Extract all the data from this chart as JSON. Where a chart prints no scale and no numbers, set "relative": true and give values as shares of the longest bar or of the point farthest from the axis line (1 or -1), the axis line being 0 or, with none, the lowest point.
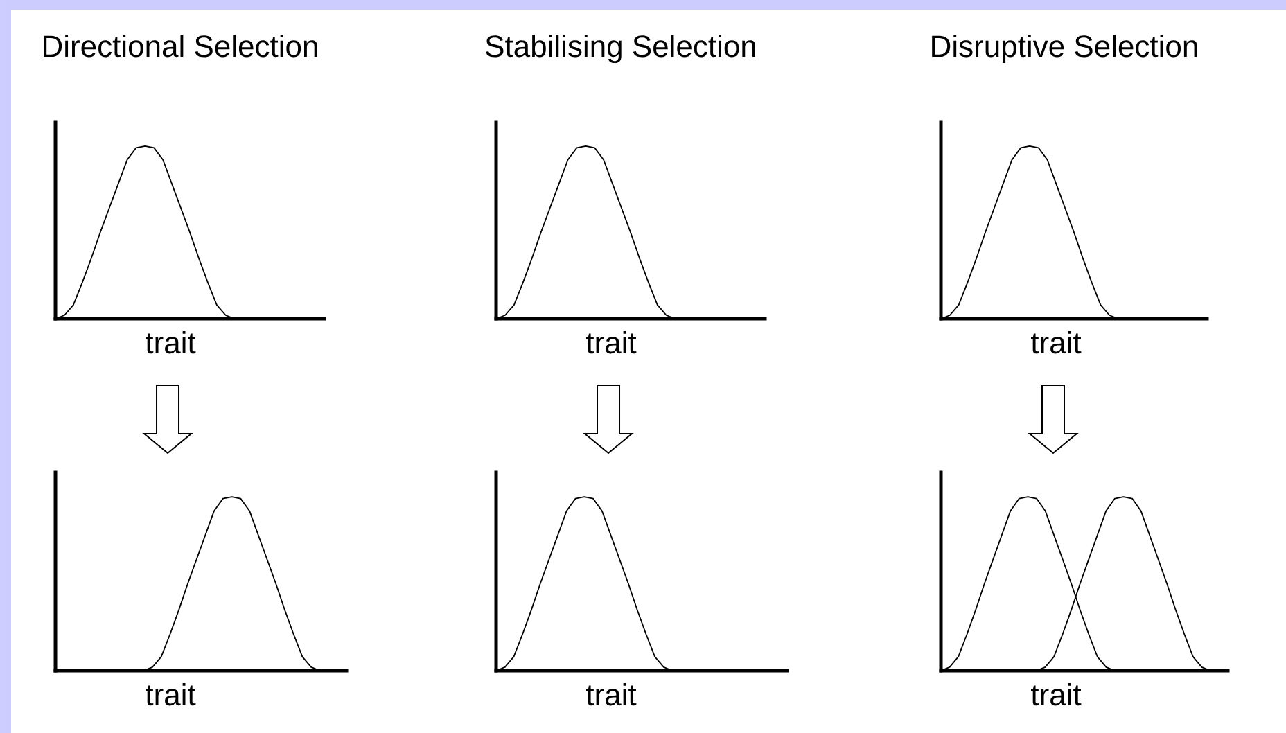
{
  "chart_data": [
    {
      "type": "line",
      "title": "Directional Selection",
      "xlabel": "trait",
      "relative": true,
      "categories": [
        null,
        null,
        null,
        null,
        null,
        null,
        null,
        null,
        null,
        null,
        null,
        null,
        null,
        null,
        null,
        null,
        null,
        null,
        null,
        null,
        null,
        null,
        null,
        null,
        null,
        null,
        null,
        null,
        null,
        null,
        null
      ],
      "series": [
        {
          "color": "#000000",
          "values": [
            0,
            0.02,
            0.08,
            0.21,
            0.35,
            0.5,
            0.64,
            0.78,
            0.92,
            0.99,
            1,
            0.99,
            0.92,
            0.78,
            0.64,
            0.5,
            0.35,
            0.21,
            0.08,
            0.02,
            0,
            null,
            null,
            null,
            null,
            null,
            null,
            null,
            null,
            null,
            null
          ]
        }
      ]
    },
    {
      "type": "line",
      "title": "Stabilising Selection",
      "xlabel": "trait",
      "relative": true,
      "categories": [
        null,
        null,
        null,
        null,
        null,
        null,
        null,
        null,
        null,
        null,
        null,
        null,
        null,
        null,
        null,
        null,
        null,
        null,
        null,
        null,
        null,
        null,
        null,
        null,
        null,
        null,
        null,
        null,
        null,
        null,
        null
      ],
      "series": [
        {
          "color": "#000000",
          "values": [
            0,
            0.02,
            0.08,
            0.21,
            0.35,
            0.5,
            0.64,
            0.78,
            0.92,
            0.99,
            1,
            0.99,
            0.92,
            0.78,
            0.64,
            0.5,
            0.35,
            0.21,
            0.08,
            0.02,
            0,
            null,
            null,
            null,
            null,
            null,
            null,
            null,
            null,
            null,
            null
          ]
        }
      ]
    },
    {
      "type": "line",
      "title": "Disruptive Selection",
      "xlabel": "trait",
      "relative": true,
      "categories": [
        null,
        null,
        null,
        null,
        null,
        null,
        null,
        null,
        null,
        null,
        null,
        null,
        null,
        null,
        null,
        null,
        null,
        null,
        null,
        null,
        null,
        null,
        null,
        null,
        null,
        null,
        null,
        null,
        null,
        null,
        null
      ],
      "series": [
        {
          "color": "#000000",
          "values": [
            0,
            0.02,
            0.08,
            0.21,
            0.35,
            0.5,
            0.64,
            0.78,
            0.92,
            0.99,
            1,
            0.99,
            0.92,
            0.78,
            0.64,
            0.5,
            0.35,
            0.21,
            0.08,
            0.02,
            0,
            null,
            null,
            null,
            null,
            null,
            null,
            null,
            null,
            null,
            null
          ]
        }
      ]
    },
    {
      "type": "line",
      "xlabel": "trait",
      "relative": true,
      "categories": [
        null,
        null,
        null,
        null,
        null,
        null,
        null,
        null,
        null,
        null,
        null,
        null,
        null,
        null,
        null,
        null,
        null,
        null,
        null,
        null,
        null,
        null,
        null,
        null,
        null,
        null,
        null,
        null,
        null,
        null,
        null,
        null,
        null,
        null
      ],
      "series": [
        {
          "color": "#000000",
          "values": [
            null,
            null,
            null,
            null,
            null,
            null,
            null,
            null,
            null,
            null,
            0,
            0.02,
            0.08,
            0.21,
            0.35,
            0.5,
            0.64,
            0.78,
            0.92,
            0.99,
            1,
            0.99,
            0.92,
            0.78,
            0.64,
            0.5,
            0.35,
            0.21,
            0.08,
            0.02,
            0,
            null,
            null,
            null
          ]
        }
      ]
    },
    {
      "type": "line",
      "xlabel": "trait",
      "relative": true,
      "categories": [
        null,
        null,
        null,
        null,
        null,
        null,
        null,
        null,
        null,
        null,
        null,
        null,
        null,
        null,
        null,
        null,
        null,
        null,
        null,
        null,
        null,
        null,
        null,
        null,
        null,
        null,
        null,
        null,
        null,
        null,
        null,
        null,
        null,
        null
      ],
      "series": [
        {
          "color": "#000000",
          "values": [
            0,
            0.02,
            0.08,
            0.21,
            0.35,
            0.5,
            0.64,
            0.78,
            0.92,
            0.99,
            1,
            0.99,
            0.92,
            0.78,
            0.64,
            0.5,
            0.35,
            0.21,
            0.08,
            0.02,
            0,
            null,
            null,
            null,
            null,
            null,
            null,
            null,
            null,
            null,
            null,
            null,
            null,
            null
          ]
        }
      ]
    },
    {
      "type": "line",
      "xlabel": "trait",
      "relative": true,
      "categories": [
        null,
        null,
        null,
        null,
        null,
        null,
        null,
        null,
        null,
        null,
        null,
        null,
        null,
        null,
        null,
        null,
        null,
        null,
        null,
        null,
        null,
        null,
        null,
        null,
        null,
        null,
        null,
        null,
        null,
        null,
        null,
        null,
        null,
        null
      ],
      "series": [
        {
          "color": "#000000",
          "values": [
            0,
            0.02,
            0.08,
            0.21,
            0.35,
            0.5,
            0.64,
            0.78,
            0.92,
            0.99,
            1,
            0.99,
            0.92,
            0.78,
            0.64,
            0.5,
            0.35,
            0.21,
            0.08,
            0.02,
            0,
            null,
            null,
            null,
            null,
            null,
            null,
            null,
            null,
            null,
            null,
            null,
            null,
            null
          ]
        },
        {
          "color": "#000000",
          "values": [
            null,
            null,
            null,
            null,
            null,
            null,
            null,
            null,
            null,
            null,
            null,
            0,
            0.02,
            0.08,
            0.21,
            0.35,
            0.5,
            0.64,
            0.78,
            0.92,
            0.99,
            1,
            0.99,
            0.92,
            0.78,
            0.64,
            0.5,
            0.35,
            0.21,
            0.08,
            0.02,
            0,
            null,
            null
          ]
        }
      ]
    }
  ]
}
